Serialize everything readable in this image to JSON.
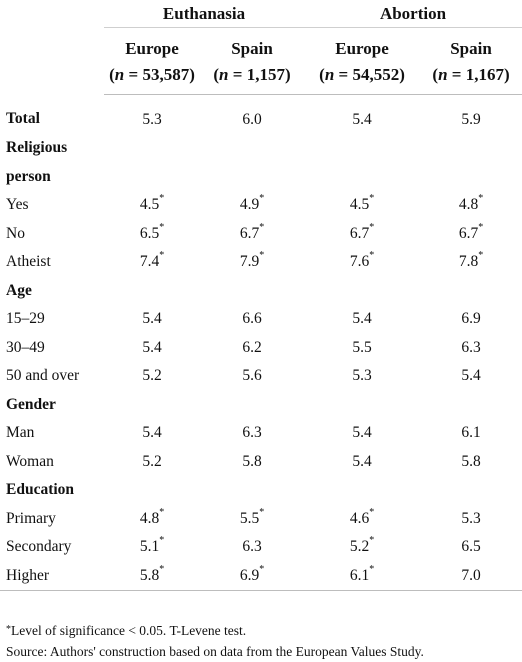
{
  "groups": [
    {
      "label": "Euthanasia"
    },
    {
      "label": "Abortion"
    }
  ],
  "subheaders": [
    {
      "name": "Europe",
      "n_prefix": "n",
      "n_value": "= 53,587"
    },
    {
      "name": "Spain",
      "n_prefix": "n",
      "n_value": "= 1,157"
    },
    {
      "name": "Europe",
      "n_prefix": "n",
      "n_value": "= 54,552"
    },
    {
      "name": "Spain",
      "n_prefix": "n",
      "n_value": "= 1,167"
    }
  ],
  "rows": [
    {
      "label": "Total",
      "section": true,
      "values": [
        {
          "v": "5.3",
          "sig": false
        },
        {
          "v": "6.0",
          "sig": false
        },
        {
          "v": "5.4",
          "sig": false
        },
        {
          "v": "5.9",
          "sig": false
        }
      ]
    },
    {
      "label": "Religious",
      "section": true,
      "values": []
    },
    {
      "label": "person",
      "section": true,
      "values": []
    },
    {
      "label": "Yes",
      "section": false,
      "values": [
        {
          "v": "4.5",
          "sig": true
        },
        {
          "v": "4.9",
          "sig": true
        },
        {
          "v": "4.5",
          "sig": true
        },
        {
          "v": "4.8",
          "sig": true
        }
      ]
    },
    {
      "label": "No",
      "section": false,
      "values": [
        {
          "v": "6.5",
          "sig": true
        },
        {
          "v": "6.7",
          "sig": true
        },
        {
          "v": "6.7",
          "sig": true
        },
        {
          "v": "6.7",
          "sig": true
        }
      ]
    },
    {
      "label": "Atheist",
      "section": false,
      "values": [
        {
          "v": "7.4",
          "sig": true
        },
        {
          "v": "7.9",
          "sig": true
        },
        {
          "v": "7.6",
          "sig": true
        },
        {
          "v": "7.8",
          "sig": true
        }
      ]
    },
    {
      "label": "Age",
      "section": true,
      "values": []
    },
    {
      "label": "15–29",
      "section": false,
      "values": [
        {
          "v": "5.4",
          "sig": false
        },
        {
          "v": "6.6",
          "sig": false
        },
        {
          "v": "5.4",
          "sig": false
        },
        {
          "v": "6.9",
          "sig": false
        }
      ]
    },
    {
      "label": "30–49",
      "section": false,
      "values": [
        {
          "v": "5.4",
          "sig": false
        },
        {
          "v": "6.2",
          "sig": false
        },
        {
          "v": "5.5",
          "sig": false
        },
        {
          "v": "6.3",
          "sig": false
        }
      ]
    },
    {
      "label": "50 and over",
      "section": false,
      "values": [
        {
          "v": "5.2",
          "sig": false
        },
        {
          "v": "5.6",
          "sig": false
        },
        {
          "v": "5.3",
          "sig": false
        },
        {
          "v": "5.4",
          "sig": false
        }
      ]
    },
    {
      "label": "Gender",
      "section": true,
      "values": []
    },
    {
      "label": "Man",
      "section": false,
      "values": [
        {
          "v": "5.4",
          "sig": false
        },
        {
          "v": "6.3",
          "sig": false
        },
        {
          "v": "5.4",
          "sig": false
        },
        {
          "v": "6.1",
          "sig": false
        }
      ]
    },
    {
      "label": "Woman",
      "section": false,
      "values": [
        {
          "v": "5.2",
          "sig": false
        },
        {
          "v": "5.8",
          "sig": false
        },
        {
          "v": "5.4",
          "sig": false
        },
        {
          "v": "5.8",
          "sig": false
        }
      ]
    },
    {
      "label": "Education",
      "section": true,
      "values": []
    },
    {
      "label": "Primary",
      "section": false,
      "values": [
        {
          "v": "4.8",
          "sig": true
        },
        {
          "v": "5.5",
          "sig": true
        },
        {
          "v": "4.6",
          "sig": true
        },
        {
          "v": "5.3",
          "sig": false
        }
      ]
    },
    {
      "label": "Secondary",
      "section": false,
      "values": [
        {
          "v": "5.1",
          "sig": true
        },
        {
          "v": "6.3",
          "sig": false
        },
        {
          "v": "5.2",
          "sig": true
        },
        {
          "v": "6.5",
          "sig": false
        }
      ]
    },
    {
      "label": "Higher",
      "section": false,
      "values": [
        {
          "v": "5.8",
          "sig": true
        },
        {
          "v": "6.9",
          "sig": true
        },
        {
          "v": "6.1",
          "sig": true
        },
        {
          "v": "7.0",
          "sig": false
        }
      ]
    }
  ],
  "significance_marker": "*",
  "footnotes": {
    "significance": "Level of significance < 0.05. T-Levene test.",
    "source": "Source: Authors' construction based on data from the European Values Study."
  }
}
